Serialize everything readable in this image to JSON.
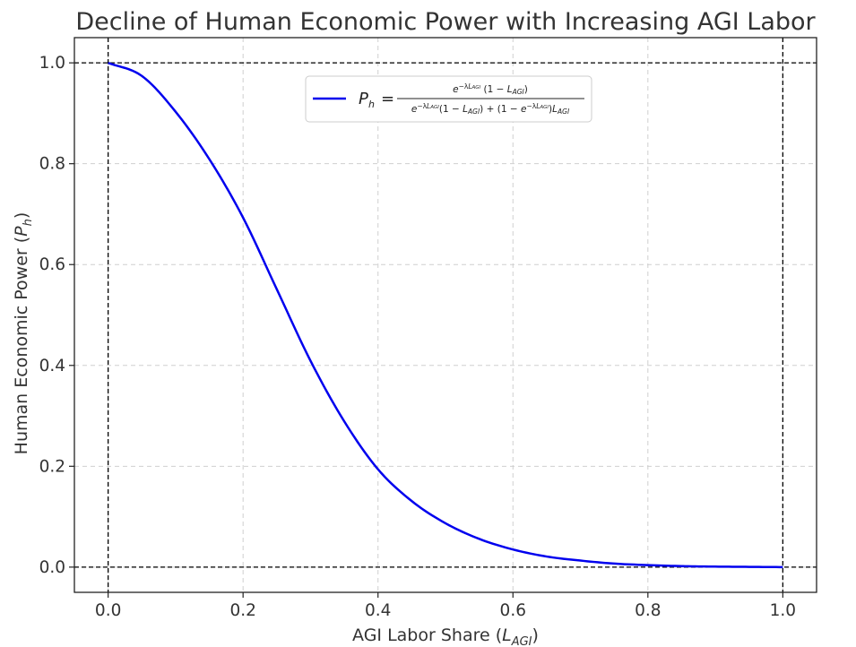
{
  "chart_data": {
    "type": "line",
    "title": "Decline of Human Economic Power with Increasing AGI Labor",
    "xlabel_main": "AGI Labor Share (",
    "xlabel_sym": "L",
    "xlabel_sub": "AGI",
    "xlabel_close": ")",
    "ylabel_main": "Human Economic Power (",
    "ylabel_sym": "P",
    "ylabel_sub": "h",
    "ylabel_close": ")",
    "xlim": [
      -0.05,
      1.05
    ],
    "ylim": [
      -0.05,
      1.05
    ],
    "xticks": [
      0.0,
      0.2,
      0.4,
      0.6,
      0.8,
      1.0
    ],
    "yticks": [
      0.0,
      0.2,
      0.4,
      0.6,
      0.8,
      1.0
    ],
    "x_tick_labels": [
      "0.0",
      "0.2",
      "0.4",
      "0.6",
      "0.8",
      "1.0"
    ],
    "y_tick_labels": [
      "0.0",
      "0.2",
      "0.4",
      "0.6",
      "0.8",
      "1.0"
    ],
    "grid": true,
    "reference_lines": {
      "vertical": [
        0.0,
        1.0
      ],
      "horizontal": [
        0.0,
        1.0
      ]
    },
    "legend_position": "top-center",
    "series": [
      {
        "name": "P_h = e^(−λL_AGI)(1 − L_AGI) / [e^(−λL_AGI)(1 − L_AGI) + (1 − e^(−λL_AGI))L_AGI]",
        "color": "#0000ee",
        "x": [
          0.0,
          0.05,
          0.1,
          0.15,
          0.2,
          0.25,
          0.3,
          0.35,
          0.4,
          0.45,
          0.5,
          0.55,
          0.6,
          0.65,
          0.7,
          0.75,
          0.8,
          0.85,
          0.9,
          0.95,
          1.0
        ],
        "y": [
          1.0,
          0.974,
          0.903,
          0.809,
          0.693,
          0.551,
          0.409,
          0.289,
          0.194,
          0.131,
          0.087,
          0.056,
          0.035,
          0.021,
          0.013,
          0.007,
          0.004,
          0.002,
          0.001,
          0.0005,
          0.0
        ]
      }
    ]
  }
}
